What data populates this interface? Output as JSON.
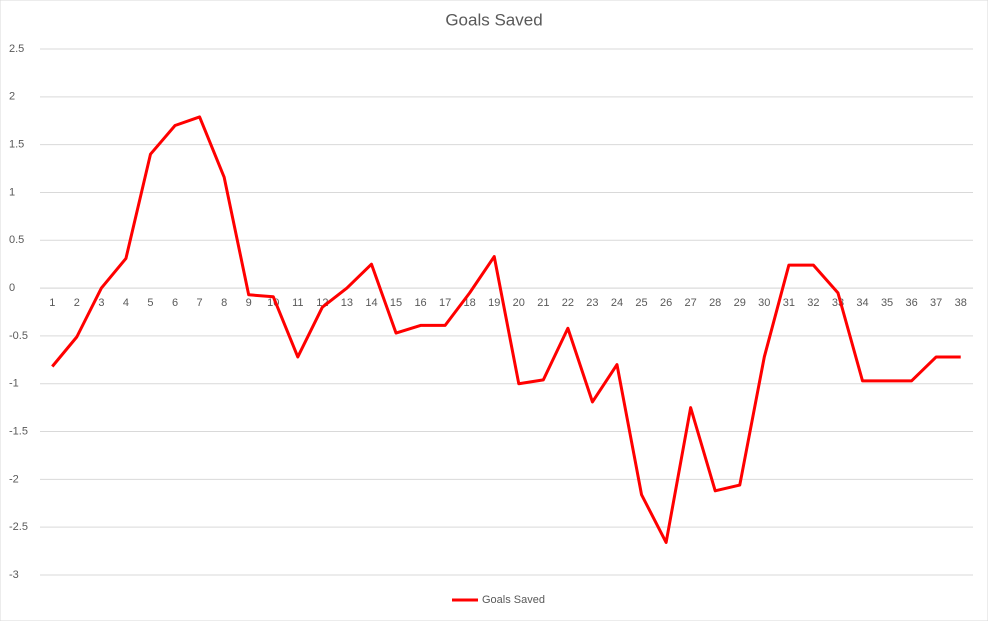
{
  "chart_data": {
    "type": "line",
    "title": "Goals Saved",
    "categories": [
      "1",
      "2",
      "3",
      "4",
      "5",
      "6",
      "7",
      "8",
      "9",
      "10",
      "11",
      "12",
      "13",
      "14",
      "15",
      "16",
      "17",
      "18",
      "19",
      "20",
      "21",
      "22",
      "23",
      "24",
      "25",
      "26",
      "27",
      "28",
      "29",
      "30",
      "31",
      "32",
      "33",
      "34",
      "35",
      "36",
      "37",
      "38"
    ],
    "series": [
      {
        "name": "Goals Saved",
        "color": "#ff0000",
        "values": [
          -0.82,
          -0.51,
          0,
          0.31,
          1.4,
          1.7,
          1.79,
          1.16,
          -0.07,
          -0.09,
          -0.72,
          -0.2,
          0,
          0.25,
          -0.47,
          -0.39,
          -0.39,
          -0.05,
          0.33,
          -1.0,
          -0.96,
          -0.42,
          -1.19,
          -0.8,
          -2.16,
          -2.66,
          -1.25,
          -2.12,
          -2.06,
          -0.72,
          0.24,
          0.24,
          -0.05,
          -0.97,
          -0.97,
          -0.97,
          -0.72,
          -0.72
        ]
      }
    ],
    "ylim": [
      -3,
      2.5
    ],
    "yticks": [
      2.5,
      2,
      1.5,
      1,
      0.5,
      0,
      -0.5,
      -1,
      -1.5,
      -2,
      -2.5,
      -3
    ],
    "grid": true,
    "legend": "bottom"
  }
}
